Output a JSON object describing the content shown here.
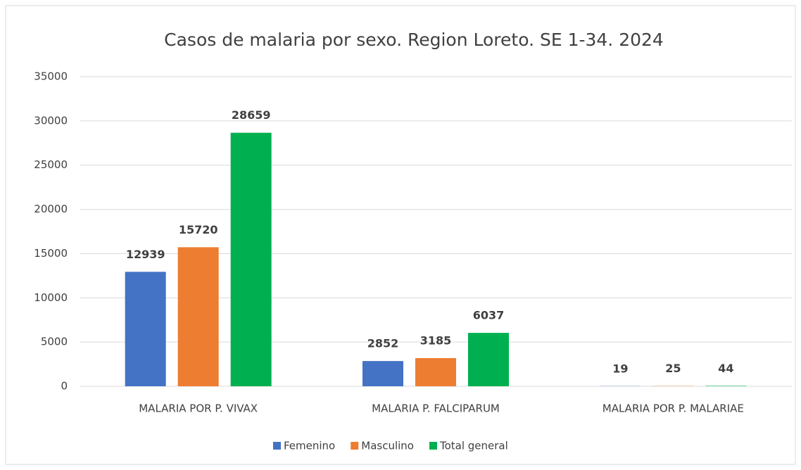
{
  "chart_data": {
    "type": "bar",
    "title": "Casos de malaria por sexo. Region Loreto. SE 1-34. 2024",
    "categories": [
      "MALARIA POR P. VIVAX",
      "MALARIA P. FALCIPARUM",
      "MALARIA POR P. MALARIAE"
    ],
    "series": [
      {
        "name": "Femenino",
        "color": "#4472c4",
        "values": [
          12939,
          2852,
          19
        ]
      },
      {
        "name": "Masculino",
        "color": "#ed7d31",
        "values": [
          15720,
          3185,
          25
        ]
      },
      {
        "name": "Total general",
        "color": "#00b050",
        "values": [
          28659,
          6037,
          44
        ]
      }
    ],
    "ylim": [
      0,
      35000
    ],
    "yticks": [
      0,
      5000,
      10000,
      15000,
      20000,
      25000,
      30000,
      35000
    ],
    "grid": true,
    "legend": "bottom"
  }
}
